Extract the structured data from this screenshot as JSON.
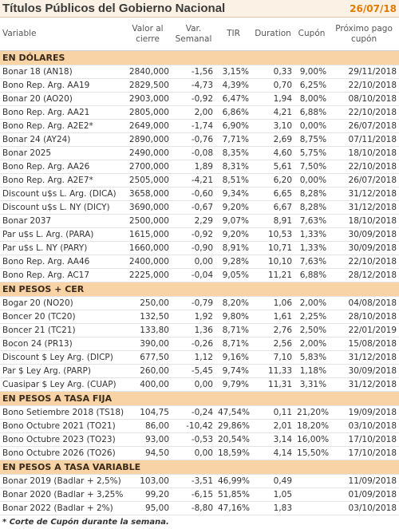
{
  "header": {
    "title": "Títulos Públicos del Gobierno Nacional",
    "date": "26/07/18"
  },
  "columns": [
    "Variable",
    "Valor al cierre",
    "Var. Semanal",
    "TIR",
    "Duration",
    "Cupón",
    "Próximo pago cupón"
  ],
  "sections": [
    {
      "title": "EN DÓLARES",
      "rows": [
        [
          "Bonar 18 (AN18)",
          "2840,000",
          "-1,56",
          "3,15%",
          "0,33",
          "9,00%",
          "29/11/2018"
        ],
        [
          "Bono Rep. Arg. AA19",
          "2829,500",
          "-4,73",
          "4,39%",
          "0,70",
          "6,25%",
          "22/10/2018"
        ],
        [
          "Bonar 20 (AO20)",
          "2903,000",
          "-0,92",
          "6,47%",
          "1,94",
          "8,00%",
          "08/10/2018"
        ],
        [
          "Bono Rep. Arg. AA21",
          "2805,000",
          "2,00",
          "6,86%",
          "4,21",
          "6,88%",
          "22/10/2018"
        ],
        [
          "Bono Rep. Arg. A2E2*",
          "2649,000",
          "-1,74",
          "6,90%",
          "3,10",
          "0,00%",
          "26/07/2018"
        ],
        [
          "Bonar 24 (AY24)",
          "2890,000",
          "-0,76",
          "7,71%",
          "2,69",
          "8,75%",
          "07/11/2018"
        ],
        [
          "Bonar 2025",
          "2490,000",
          "-0,08",
          "8,35%",
          "4,60",
          "5,75%",
          "18/10/2018"
        ],
        [
          "Bono Rep. Arg. AA26",
          "2700,000",
          "1,89",
          "8,31%",
          "5,61",
          "7,50%",
          "22/10/2018"
        ],
        [
          "Bono Rep. Arg. A2E7*",
          "2505,000",
          "-4,21",
          "8,51%",
          "6,20",
          "0,00%",
          "26/07/2018"
        ],
        [
          "Discount u$s L. Arg. (DICA)",
          "3658,000",
          "-0,60",
          "9,34%",
          "6,65",
          "8,28%",
          "31/12/2018"
        ],
        [
          "Discount u$s L. NY (DICY)",
          "3690,000",
          "-0,67",
          "9,20%",
          "6,67",
          "8,28%",
          "31/12/2018"
        ],
        [
          "Bonar 2037",
          "2500,000",
          "2,29",
          "9,07%",
          "8,91",
          "7,63%",
          "18/10/2018"
        ],
        [
          "Par u$s L. Arg. (PARA)",
          "1615,000",
          "-0,92",
          "9,20%",
          "10,53",
          "1,33%",
          "30/09/2018"
        ],
        [
          "Par u$s L. NY (PARY)",
          "1660,000",
          "-0,90",
          "8,91%",
          "10,71",
          "1,33%",
          "30/09/2018"
        ],
        [
          "Bono Rep. Arg. AA46",
          "2400,000",
          "0,00",
          "9,28%",
          "10,10",
          "7,63%",
          "22/10/2018"
        ],
        [
          "Bono Rep. Arg. AC17",
          "2225,000",
          "-0,04",
          "9,05%",
          "11,21",
          "6,88%",
          "28/12/2018"
        ]
      ]
    },
    {
      "title": "EN PESOS + CER",
      "rows": [
        [
          "Bogar 20 (NO20)",
          "250,00",
          "-0,79",
          "8,20%",
          "1,06",
          "2,00%",
          "04/08/2018"
        ],
        [
          "Boncer 20 (TC20)",
          "132,50",
          "1,92",
          "9,80%",
          "1,61",
          "2,25%",
          "28/10/2018"
        ],
        [
          "Boncer 21 (TC21)",
          "133,80",
          "1,36",
          "8,71%",
          "2,76",
          "2,50%",
          "22/01/2019"
        ],
        [
          "Bocon 24 (PR13)",
          "390,00",
          "-0,26",
          "8,71%",
          "2,56",
          "2,00%",
          "15/08/2018"
        ],
        [
          "Discount $ Ley Arg. (DICP)",
          "677,50",
          "1,12",
          "9,16%",
          "7,10",
          "5,83%",
          "31/12/2018"
        ],
        [
          "Par $ Ley Arg. (PARP)",
          "260,00",
          "-5,45",
          "9,74%",
          "11,33",
          "1,18%",
          "30/09/2018"
        ],
        [
          "Cuasipar $ Ley Arg. (CUAP)",
          "400,00",
          "0,00",
          "9,79%",
          "11,31",
          "3,31%",
          "31/12/2018"
        ]
      ]
    },
    {
      "title": "EN PESOS A TASA FIJA",
      "rows": [
        [
          "Bono Setiembre 2018 (TS18)",
          "104,75",
          "-0,24",
          "47,54%",
          "0,11",
          "21,20%",
          "19/09/2018"
        ],
        [
          "Bono Octubre 2021 (TO21)",
          "86,00",
          "-10,42",
          "29,86%",
          "2,01",
          "18,20%",
          "03/10/2018"
        ],
        [
          "Bono Octubre 2023 (TO23)",
          "93,00",
          "-0,53",
          "20,54%",
          "3,14",
          "16,00%",
          "17/10/2018"
        ],
        [
          "Bono Octubre 2026 (TO26)",
          "94,50",
          "0,00",
          "18,59%",
          "4,14",
          "15,50%",
          "17/10/2018"
        ]
      ]
    },
    {
      "title": "EN PESOS A TASA VARIABLE",
      "rows": [
        [
          "Bonar 2019 (Badlar + 2,5%)",
          "103,00",
          "-3,51",
          "46,99%",
          "0,49",
          null,
          "11/09/2018"
        ],
        [
          "Bonar 2020 (Badlar + 3,25%)",
          "99,20",
          "-6,15",
          "51,85%",
          "1,05",
          null,
          "01/09/2018"
        ],
        [
          "Bonar 2022 (Badlar + 2%)",
          "95,00",
          "-8,80",
          "47,16%",
          "1,83",
          null,
          "03/10/2018"
        ]
      ]
    }
  ],
  "footnote": "* Corte de Cupón durante la semana."
}
